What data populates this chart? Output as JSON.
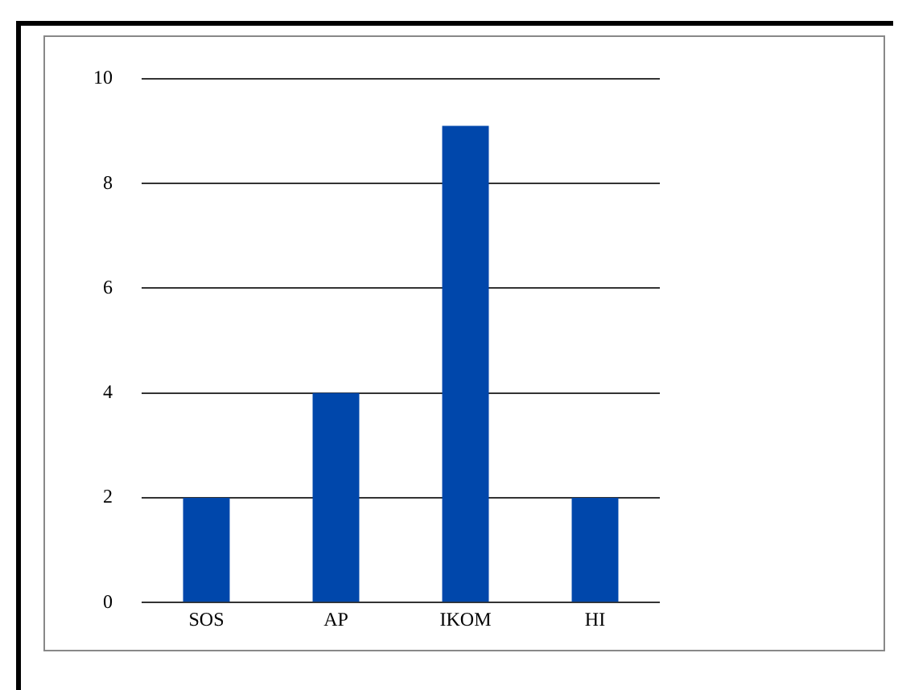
{
  "chart_data": {
    "type": "bar",
    "categories": [
      "SOS",
      "AP",
      "IKOM",
      "HI"
    ],
    "values": [
      2,
      4,
      9.1,
      2
    ],
    "color": "#0047ab",
    "ylim": [
      0,
      10
    ],
    "yticks": [
      0,
      2,
      4,
      6,
      8,
      10
    ],
    "grid": "y",
    "legend": false
  }
}
